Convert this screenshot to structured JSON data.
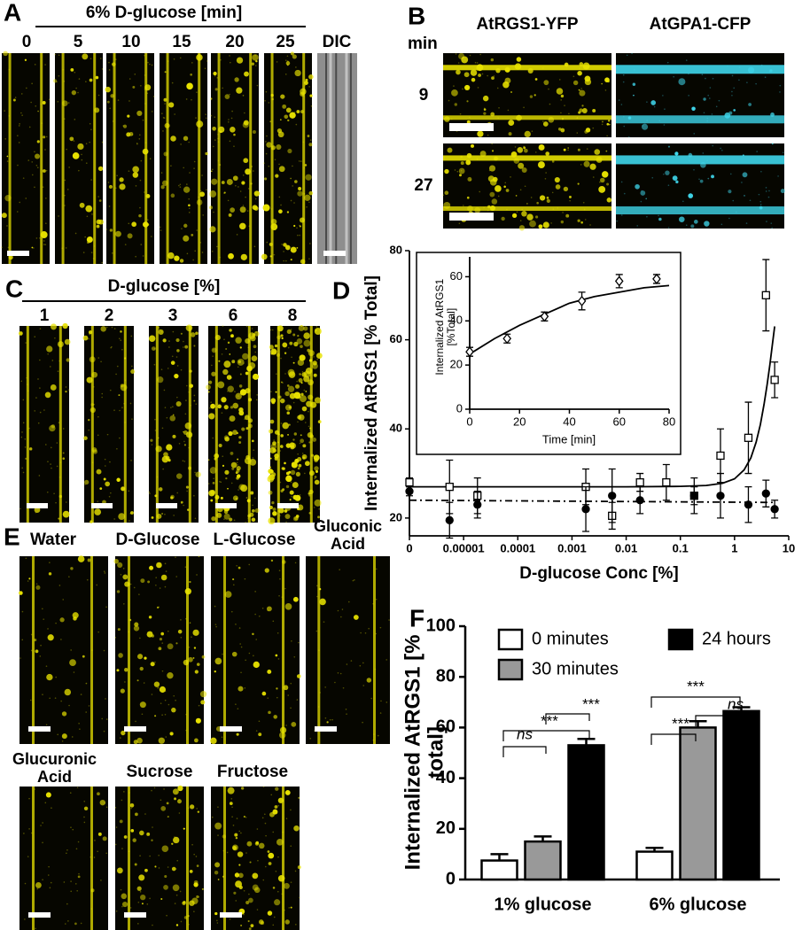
{
  "panels": {
    "A": {
      "label": "A",
      "title": "6% D-glucose [min]",
      "columns": [
        "0",
        "5",
        "10",
        "15",
        "20",
        "25",
        "DIC"
      ]
    },
    "B": {
      "label": "B",
      "unit": "min",
      "headers": [
        "AtRGS1-YFP",
        "AtGPA1-CFP"
      ],
      "rows": [
        "9",
        "27"
      ]
    },
    "C": {
      "label": "C",
      "title": "D-glucose [%]",
      "columns": [
        "1",
        "2",
        "3",
        "6",
        "8"
      ]
    },
    "D": {
      "label": "D"
    },
    "E": {
      "label": "E",
      "row1": [
        "Water",
        "D-Glucose",
        "L-Glucose",
        "Gluconic Acid"
      ],
      "row2": [
        "Glucuronic Acid",
        "Sucrose",
        "Fructose"
      ]
    },
    "F": {
      "label": "F"
    }
  },
  "chart_data": [
    {
      "type": "scatter",
      "x_label": "D-glucose Conc [%]",
      "y_label": "Internalized AtRGS1 [% Total]",
      "log_x": true,
      "xlim": [
        1e-06,
        10
      ],
      "xticks": [
        {
          "value": 1e-06,
          "label": "0"
        },
        1e-05,
        0.0001,
        0.001,
        0.01,
        0.1,
        1,
        10
      ],
      "ylim": [
        16,
        80
      ],
      "yticks": [
        20,
        40,
        60,
        80
      ],
      "series": [
        {
          "marker": "open-square",
          "x": [
            1e-06,
            5.5e-06,
            1.8e-05,
            0.0018,
            0.0055,
            0.018,
            0.055,
            0.18,
            0.55,
            1.8,
            3.8,
            5.5
          ],
          "values": [
            28,
            27,
            25,
            27,
            20.5,
            28,
            28,
            25,
            34,
            38,
            70,
            51
          ],
          "errors": [
            1,
            6,
            4,
            4,
            3,
            2,
            4,
            2,
            6,
            8,
            8,
            4
          ]
        },
        {
          "marker": "filled-circle",
          "x": [
            1e-06,
            5.5e-06,
            1.8e-05,
            0.0018,
            0.0055,
            0.018,
            0.18,
            0.55,
            1.8,
            3.8,
            5.5
          ],
          "values": [
            26,
            19.5,
            23,
            22,
            25,
            24,
            25,
            25,
            23,
            25.5,
            22
          ],
          "errors": [
            1,
            4,
            3,
            5,
            6,
            3,
            4,
            5,
            4,
            3,
            2
          ]
        }
      ],
      "fits": [
        {
          "dashed": false,
          "x": [
            1e-06,
            0.01,
            0.1,
            0.3,
            0.6,
            1,
            1.5,
            2,
            2.5,
            3,
            3.5,
            4,
            4.5,
            5,
            5.5
          ],
          "values": [
            27,
            27,
            27.1,
            27.3,
            27.8,
            28.8,
            30.8,
            33.5,
            37,
            41,
            45.5,
            50,
            54.5,
            59,
            63
          ]
        },
        {
          "dashed": true,
          "x": [
            1e-06,
            5.5
          ],
          "values": [
            24,
            23.5
          ]
        }
      ]
    },
    {
      "type": "scatter",
      "x_label": "Time [min]",
      "y_label": "Internalized AtRGS1 [%Total]",
      "xlim": [
        0,
        80
      ],
      "xticks": [
        0,
        20,
        40,
        60,
        80
      ],
      "ylim": [
        0,
        69
      ],
      "yticks": [
        0,
        20,
        40,
        60
      ],
      "series": [
        {
          "marker": "open-diamond",
          "x": [
            0,
            15,
            30,
            45,
            60,
            75
          ],
          "values": [
            26,
            32,
            42,
            49,
            58,
            59
          ],
          "errors": [
            2,
            2,
            2,
            4,
            3,
            2
          ]
        }
      ],
      "fits": [
        {
          "dashed": false,
          "x": [
            0,
            10,
            20,
            30,
            40,
            50,
            60,
            70,
            80
          ],
          "values": [
            25,
            32,
            38,
            43,
            48,
            51,
            53,
            55,
            56
          ]
        }
      ]
    },
    {
      "type": "bar",
      "y_label": "Internalized AtRGS1 [% total]",
      "categories": [
        "1% glucose",
        "6% glucose"
      ],
      "ylim": [
        0,
        100
      ],
      "yticks": [
        0,
        20,
        40,
        60,
        80,
        100
      ],
      "series": [
        {
          "name": "0 minutes",
          "color": "#ffffff",
          "values": [
            7.5,
            11
          ],
          "errors": [
            2.5,
            1.5
          ]
        },
        {
          "name": "30 minutes",
          "color": "#999999",
          "values": [
            15,
            60
          ],
          "errors": [
            2,
            2.5
          ]
        },
        {
          "name": "24 hours",
          "color": "#000000",
          "values": [
            53,
            66.5
          ],
          "errors": [
            2.5,
            1.5
          ]
        }
      ],
      "annotations": [
        "ns",
        "***",
        "***",
        "***",
        "***",
        "ns"
      ]
    }
  ]
}
